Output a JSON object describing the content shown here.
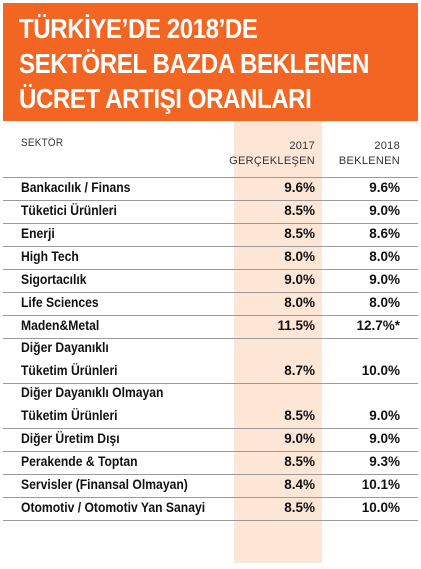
{
  "title": {
    "line1": "TÜRKİYE’DE 2018’DE",
    "line2": "SEKTÖREL BAZDA BEKLENEN",
    "line3": "ÜCRET ARTIŞI ORANLARI"
  },
  "columns": {
    "sector": "SEKTÖR",
    "y2017_line1": "2017",
    "y2017_line2": "GERÇEKLEŞEN",
    "y2018_line1": "2018",
    "y2018_line2": "BEKLENEN"
  },
  "rows": [
    {
      "name": "Bankacılık / Finans",
      "v2017": "9.6%",
      "v2018": "9.6%"
    },
    {
      "name": "Tüketici Ürünleri",
      "v2017": "8.5%",
      "v2018": "9.0%"
    },
    {
      "name": "Enerji",
      "v2017": "8.5%",
      "v2018": "8.6%"
    },
    {
      "name": "High Tech",
      "v2017": "8.0%",
      "v2018": "8.0%"
    },
    {
      "name": "Sigortacılık",
      "v2017": "9.0%",
      "v2018": "9.0%"
    },
    {
      "name": "Life Sciences",
      "v2017": "8.0%",
      "v2018": "8.0%"
    },
    {
      "name": "Maden&Metal",
      "v2017": "11.5%",
      "v2018": "12.7%*"
    },
    {
      "name_line1": "Diğer Dayanıklı",
      "name_line2": "Tüketim Ürünleri",
      "v2017": "8.7%",
      "v2018": "10.0%"
    },
    {
      "name_line1": "Diğer Dayanıklı Olmayan",
      "name_line2": "Tüketim Ürünleri",
      "v2017": "8.5%",
      "v2018": "9.0%"
    },
    {
      "name": "Diğer Üretim Dışı",
      "v2017": "9.0%",
      "v2018": "9.0%"
    },
    {
      "name": "Perakende & Toptan",
      "v2017": "8.5%",
      "v2018": "9.3%"
    },
    {
      "name": "Servisler (Finansal Olmayan)",
      "v2017": "8.4%",
      "v2018": "10.1%"
    },
    {
      "name": "Otomotiv / Otomotiv Yan Sanayi",
      "v2017": "8.5%",
      "v2018": "10.0%"
    }
  ],
  "colors": {
    "header_bg": "#f26522",
    "highlight_col": "#fde6d6"
  }
}
